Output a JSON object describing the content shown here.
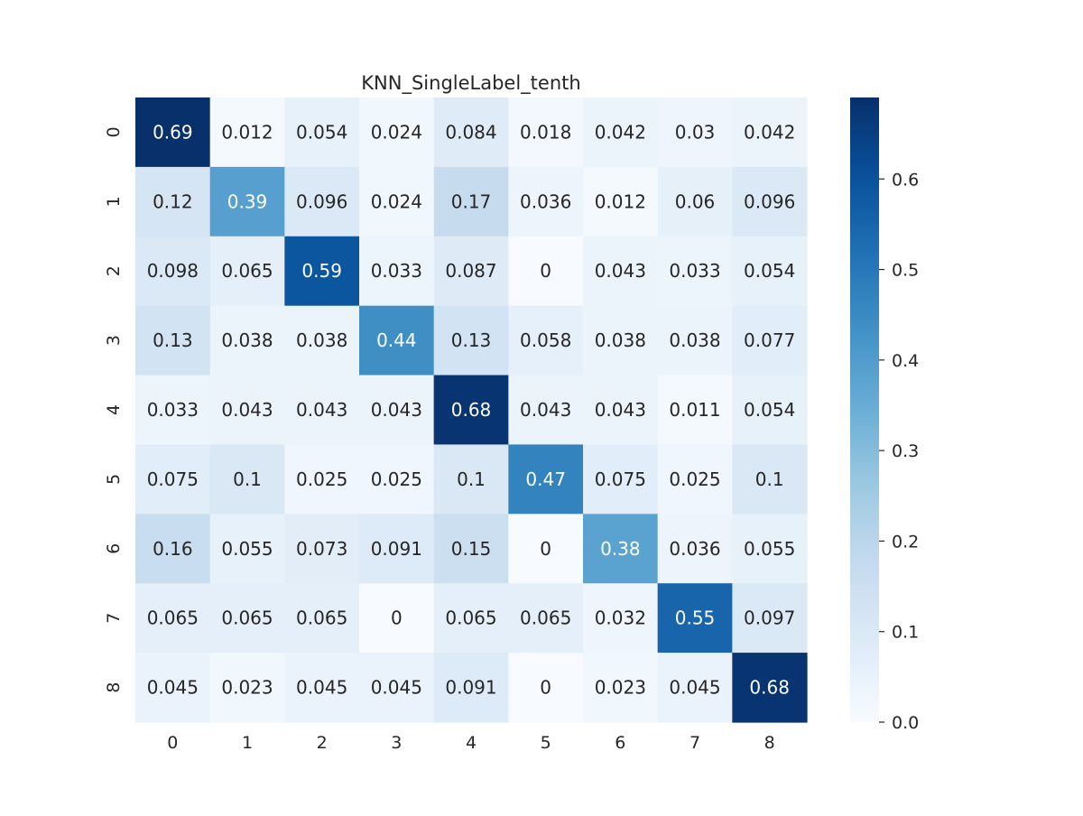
{
  "chart_data": {
    "type": "heatmap",
    "title": "KNN_SingleLabel_tenth",
    "xlabel": "",
    "ylabel": "",
    "x_labels": [
      "0",
      "1",
      "2",
      "3",
      "4",
      "5",
      "6",
      "7",
      "8"
    ],
    "y_labels": [
      "0",
      "1",
      "2",
      "3",
      "4",
      "5",
      "6",
      "7",
      "8"
    ],
    "values": [
      [
        "0.69",
        "0.012",
        "0.054",
        "0.024",
        "0.084",
        "0.018",
        "0.042",
        "0.03",
        "0.042"
      ],
      [
        "0.12",
        "0.39",
        "0.096",
        "0.024",
        "0.17",
        "0.036",
        "0.012",
        "0.06",
        "0.096"
      ],
      [
        "0.098",
        "0.065",
        "0.59",
        "0.033",
        "0.087",
        "0",
        "0.043",
        "0.033",
        "0.054"
      ],
      [
        "0.13",
        "0.038",
        "0.038",
        "0.44",
        "0.13",
        "0.058",
        "0.038",
        "0.038",
        "0.077"
      ],
      [
        "0.033",
        "0.043",
        "0.043",
        "0.043",
        "0.68",
        "0.043",
        "0.043",
        "0.011",
        "0.054"
      ],
      [
        "0.075",
        "0.1",
        "0.025",
        "0.025",
        "0.1",
        "0.47",
        "0.075",
        "0.025",
        "0.1"
      ],
      [
        "0.16",
        "0.055",
        "0.073",
        "0.091",
        "0.15",
        "0",
        "0.38",
        "0.036",
        "0.055"
      ],
      [
        "0.065",
        "0.065",
        "0.065",
        "0",
        "0.065",
        "0.065",
        "0.032",
        "0.55",
        "0.097"
      ],
      [
        "0.045",
        "0.023",
        "0.045",
        "0.045",
        "0.091",
        "0",
        "0.023",
        "0.045",
        "0.68"
      ]
    ],
    "colorbar": {
      "colormap": "Blues",
      "range": [
        0,
        0.69
      ],
      "ticks": [
        "0.0",
        "0.1",
        "0.2",
        "0.3",
        "0.4",
        "0.5",
        "0.6"
      ]
    },
    "grid": false
  }
}
